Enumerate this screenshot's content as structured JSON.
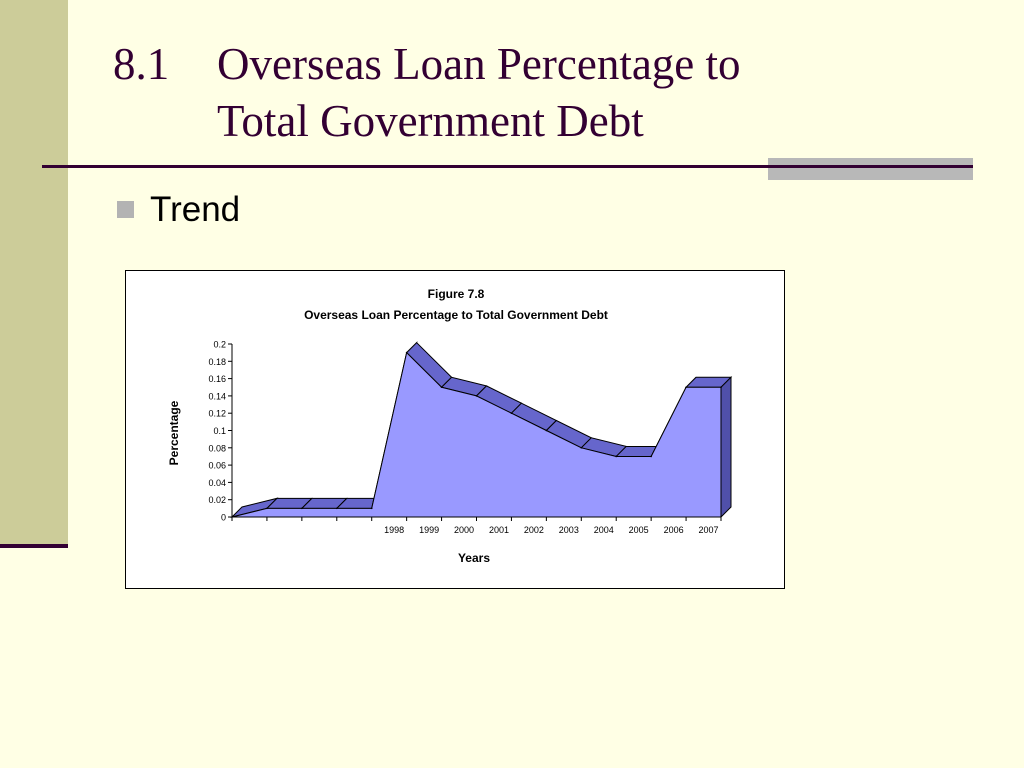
{
  "slide": {
    "number": "8.1",
    "title_line1": "Overseas Loan Percentage to",
    "title_line2": "Total Government Debt",
    "bullet": "Trend"
  },
  "chart_data": {
    "type": "area",
    "title": "Figure 7.8",
    "subtitle": "Overseas Loan Percentage to Total Government Debt",
    "xlabel": "Years",
    "ylabel": "Percentage",
    "categories": [
      "",
      "",
      "",
      "",
      "1998",
      "1999",
      "2000",
      "2001",
      "2002",
      "2003",
      "2004",
      "2005",
      "2006",
      "2007"
    ],
    "series": [
      {
        "values": [
          0.01,
          0.01,
          0.01,
          0.01,
          0.19,
          0.15,
          0.14,
          0.12,
          0.1,
          0.08,
          0.07,
          0.07,
          0.15,
          0.15
        ]
      }
    ],
    "yticks": [
      "0",
      "0.02",
      "0.04",
      "0.06",
      "0.08",
      "0.1",
      "0.12",
      "0.14",
      "0.16",
      "0.18",
      "0.2"
    ],
    "ylim": [
      0,
      0.2
    ],
    "style": "3d",
    "colors": {
      "front": "#9999FF",
      "top": "#6666CC",
      "side": "#5050AA"
    }
  }
}
